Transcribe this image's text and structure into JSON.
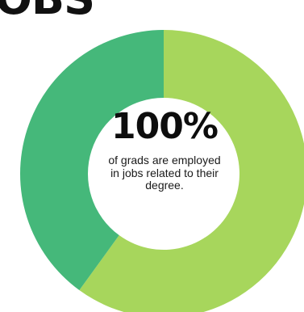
{
  "page": {
    "heading_fragment": "OBS"
  },
  "chart_data": {
    "type": "pie",
    "style": "donut",
    "slices": [
      {
        "value": 60,
        "color": "#a7d65c"
      },
      {
        "value": 40,
        "color": "#45b87a"
      }
    ],
    "center": {
      "stat": "100%",
      "caption": "of grads are employed in jobs related to their degree."
    }
  }
}
